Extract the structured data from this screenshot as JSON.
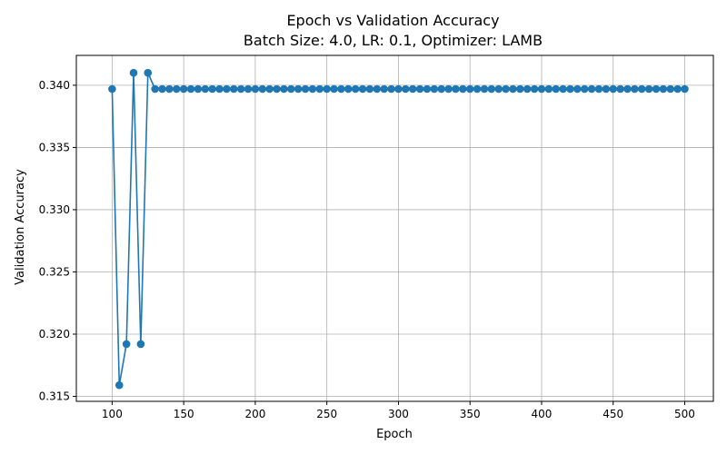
{
  "chart_data": {
    "type": "line",
    "title_line1": "Epoch vs Validation Accuracy",
    "title_line2": "Batch Size: 4.0, LR: 0.1, Optimizer: LAMB",
    "xlabel": "Epoch",
    "ylabel": "Validation Accuracy",
    "xlim": [
      75,
      520
    ],
    "ylim": [
      0.3146,
      0.3424
    ],
    "xticks": [
      100,
      150,
      200,
      250,
      300,
      350,
      400,
      450,
      500
    ],
    "yticks": [
      0.315,
      0.32,
      0.325,
      0.33,
      0.335,
      0.34
    ],
    "ytick_labels": [
      "0.315",
      "0.320",
      "0.325",
      "0.330",
      "0.335",
      "0.340"
    ],
    "grid": true,
    "series_color": "#1f77b4",
    "marker": "circle",
    "x": [
      100,
      105,
      110,
      115,
      120,
      125,
      130,
      135,
      140,
      145,
      150,
      155,
      160,
      165,
      170,
      175,
      180,
      185,
      190,
      195,
      200,
      205,
      210,
      215,
      220,
      225,
      230,
      235,
      240,
      245,
      250,
      255,
      260,
      265,
      270,
      275,
      280,
      285,
      290,
      295,
      300,
      305,
      310,
      315,
      320,
      325,
      330,
      335,
      340,
      345,
      350,
      355,
      360,
      365,
      370,
      375,
      380,
      385,
      390,
      395,
      400,
      405,
      410,
      415,
      420,
      425,
      430,
      435,
      440,
      445,
      450,
      455,
      460,
      465,
      470,
      475,
      480,
      485,
      490,
      495,
      500
    ],
    "y": [
      0.3397,
      0.3159,
      0.3192,
      0.341,
      0.3192,
      0.341,
      0.3397,
      0.3397,
      0.3397,
      0.3397,
      0.3397,
      0.3397,
      0.3397,
      0.3397,
      0.3397,
      0.3397,
      0.3397,
      0.3397,
      0.3397,
      0.3397,
      0.3397,
      0.3397,
      0.3397,
      0.3397,
      0.3397,
      0.3397,
      0.3397,
      0.3397,
      0.3397,
      0.3397,
      0.3397,
      0.3397,
      0.3397,
      0.3397,
      0.3397,
      0.3397,
      0.3397,
      0.3397,
      0.3397,
      0.3397,
      0.3397,
      0.3397,
      0.3397,
      0.3397,
      0.3397,
      0.3397,
      0.3397,
      0.3397,
      0.3397,
      0.3397,
      0.3397,
      0.3397,
      0.3397,
      0.3397,
      0.3397,
      0.3397,
      0.3397,
      0.3397,
      0.3397,
      0.3397,
      0.3397,
      0.3397,
      0.3397,
      0.3397,
      0.3397,
      0.3397,
      0.3397,
      0.3397,
      0.3397,
      0.3397,
      0.3397,
      0.3397,
      0.3397,
      0.3397,
      0.3397,
      0.3397,
      0.3397,
      0.3397,
      0.3397,
      0.3397,
      0.3397
    ]
  }
}
